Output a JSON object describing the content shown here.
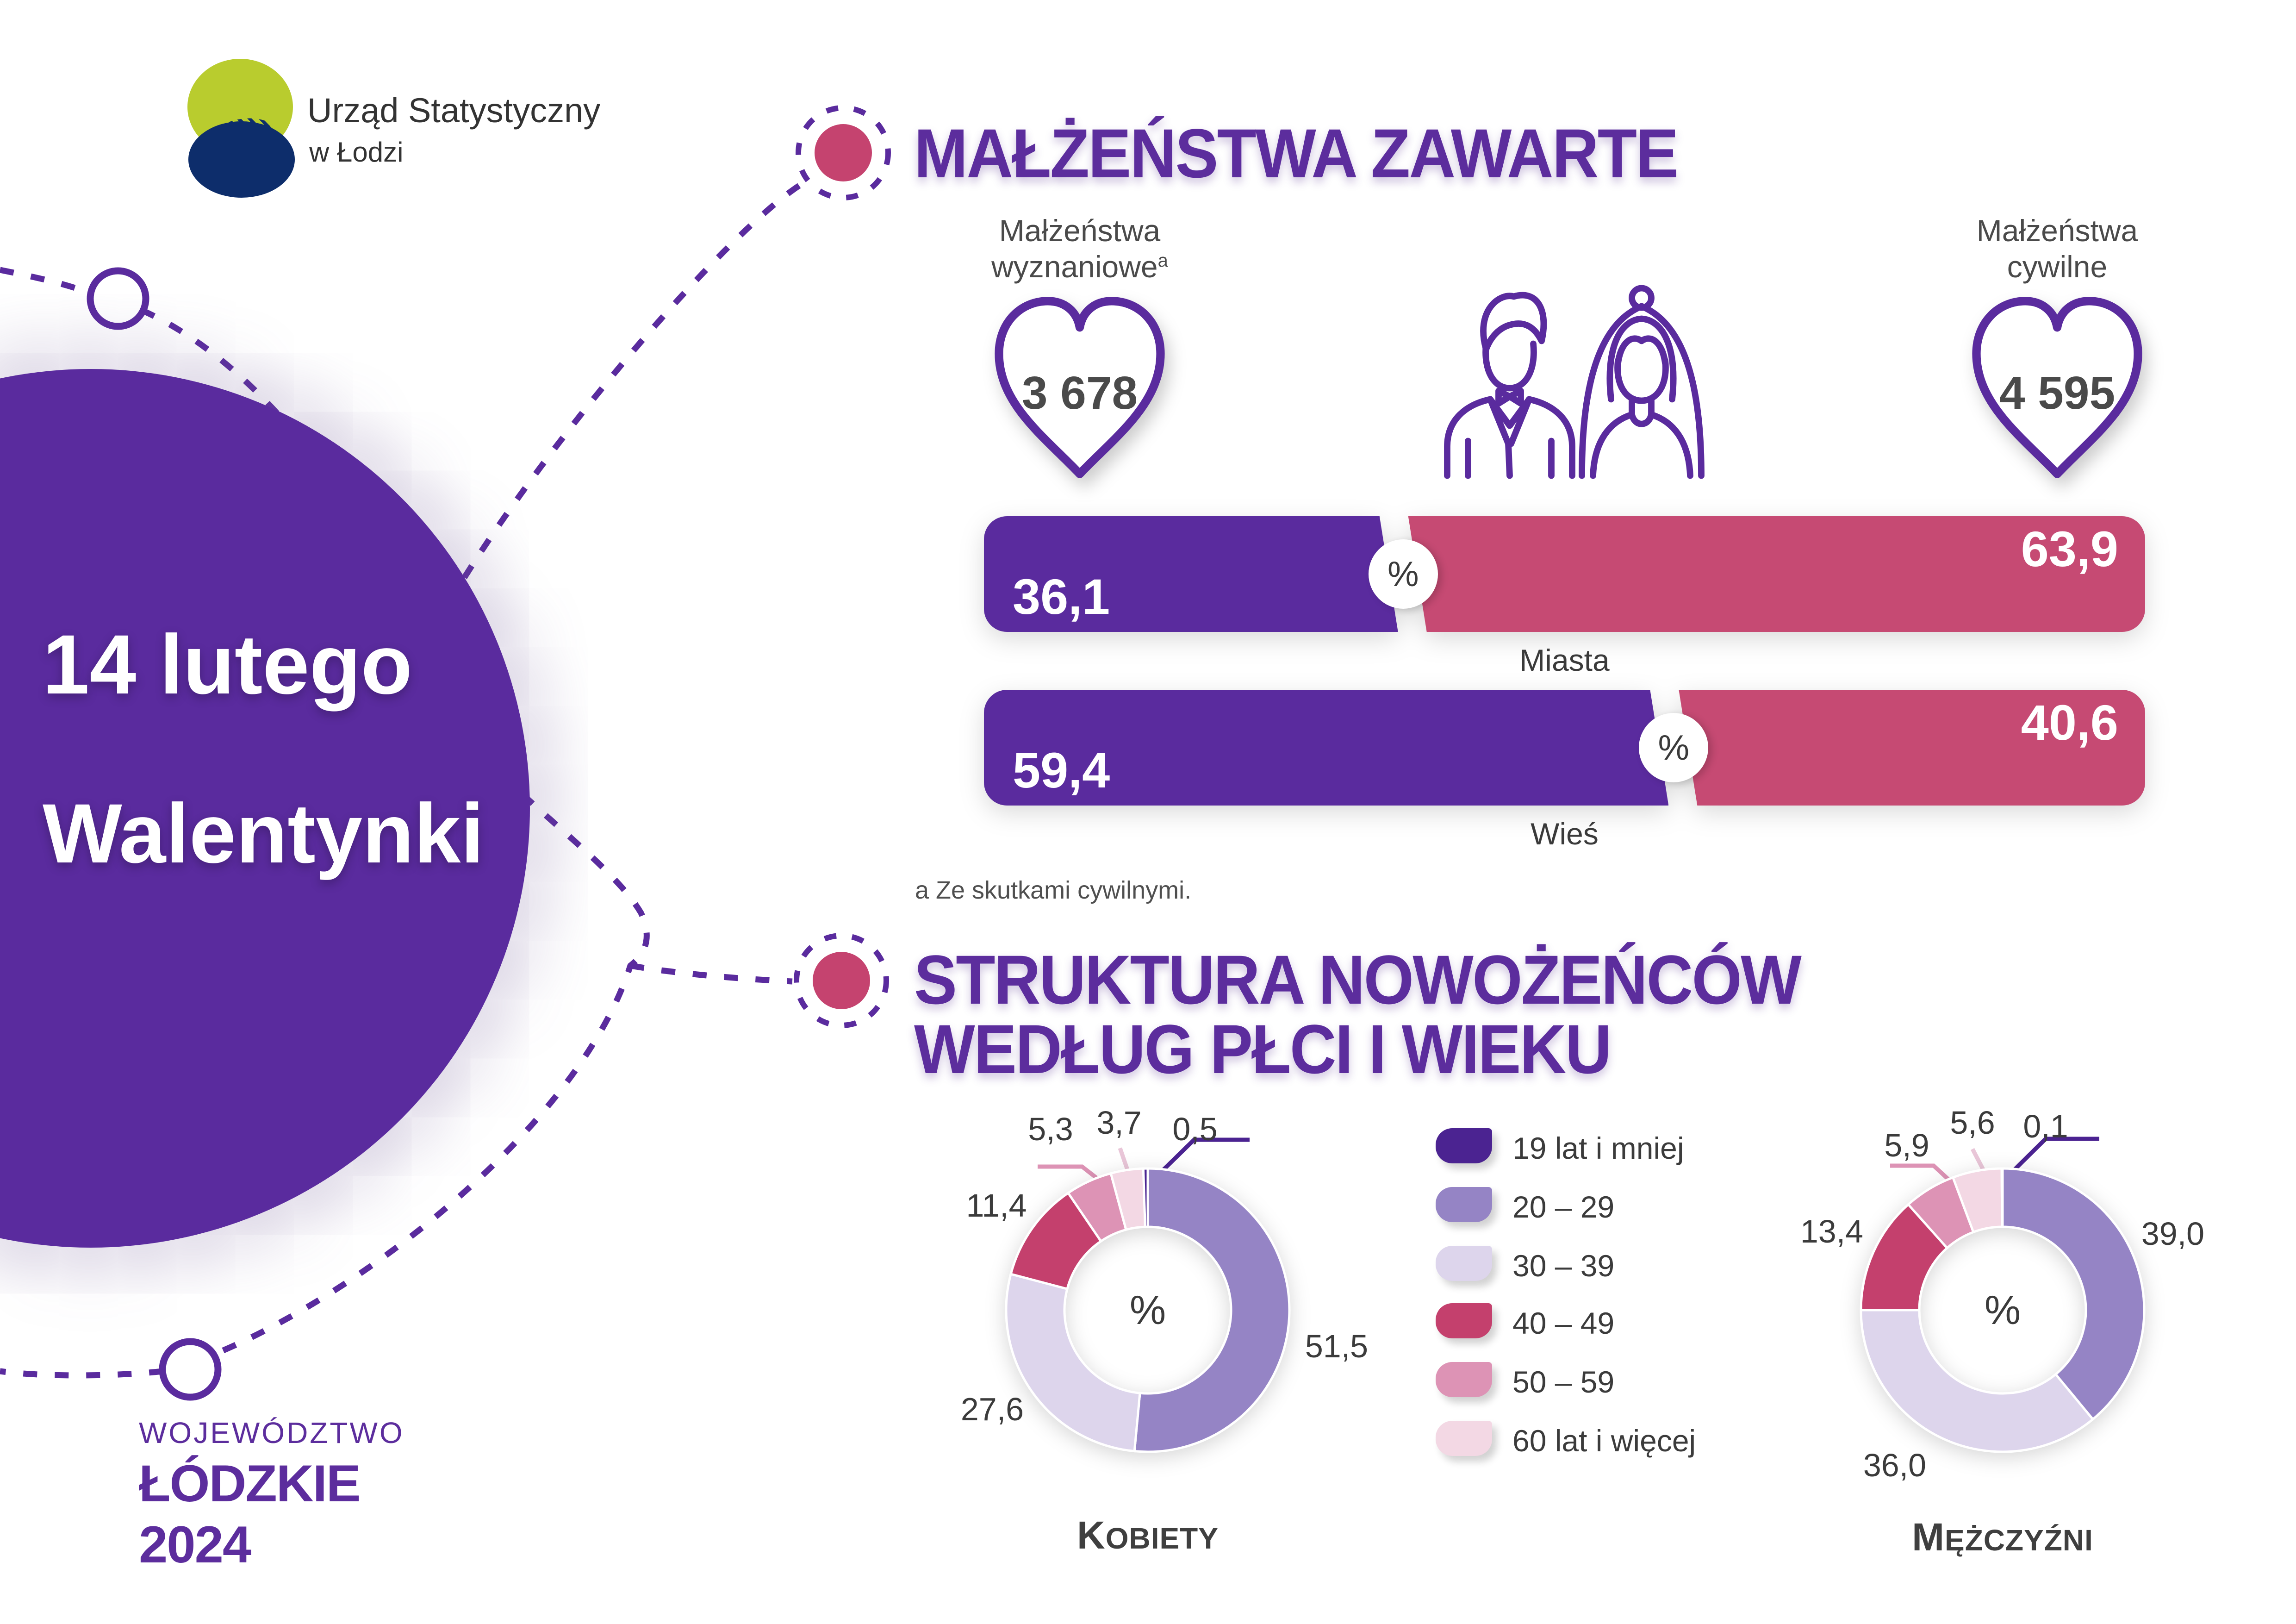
{
  "brand": {
    "name_line1": "Urząd Statystyczny",
    "name_line2": "w Łodzi"
  },
  "side_panel": {
    "date": "14 lutego",
    "event": "Walentynki",
    "region_label": "WOJEWÓDZTWO",
    "region_name": "ŁÓDZKIE",
    "year": "2024"
  },
  "marriages": {
    "title": "MAŁŻEŃSTWA ZAWARTE",
    "religious_label_line1": "Małżeństwa",
    "religious_label_line2": "wyznaniowe",
    "religious_footnote_marker": "a",
    "religious_value": "3 678",
    "civil_label_line1": "Małżeństwa",
    "civil_label_line2": "cywilne",
    "civil_value": "4 595",
    "percent_symbol": "%",
    "bar1": {
      "left": "36,1",
      "right": "63,9",
      "caption": "Miasta"
    },
    "bar2": {
      "left": "59,4",
      "right": "40,6",
      "caption": "Wieś"
    },
    "footnote": "a Ze skutkami cywilnymi."
  },
  "structure": {
    "title_line1": "STRUKTURA NOWOŻEŃCÓW",
    "title_line2": "WEDŁUG PŁCI I WIEKU",
    "percent_symbol": "%",
    "legend": [
      "19 lat i mniej",
      "20 – 29",
      "30 – 39",
      "40 – 49",
      "50 – 59",
      "60 lat i więcej"
    ],
    "women": {
      "caption": "KOBIETY",
      "a19": "0,5",
      "a20": "51,5",
      "a30": "27,6",
      "a40": "11,4",
      "a50": "5,3",
      "a60": "3,7"
    },
    "men": {
      "caption": "MĘŻCZYŹNI",
      "a19": "0,1",
      "a20": "39,0",
      "a30": "36,0",
      "a40": "13,4",
      "a50": "5,9",
      "a60": "5,6"
    }
  },
  "chart_data": [
    {
      "type": "bar",
      "title": "Małżeństwa zawarte — podział procentowy (fiolet / róż)",
      "unit": "%",
      "categories": [
        "Miasta",
        "Wieś"
      ],
      "series": [
        {
          "name": "segment fioletowy",
          "values": [
            36.1,
            59.4
          ]
        },
        {
          "name": "segment różowy",
          "values": [
            63.9,
            40.6
          ]
        }
      ],
      "annotations": {
        "religious_total": 3678,
        "civil_total": 4595
      }
    },
    {
      "type": "pie",
      "title": "Kobiety",
      "unit": "%",
      "categories": [
        "19 lat i mniej",
        "20 – 29",
        "30 – 39",
        "40 – 49",
        "50 – 59",
        "60 lat i więcej"
      ],
      "values": [
        0.5,
        51.5,
        27.6,
        11.4,
        5.3,
        3.7
      ],
      "legend_position": "center-between-charts",
      "donut": true
    },
    {
      "type": "pie",
      "title": "Mężczyźni",
      "unit": "%",
      "categories": [
        "19 lat i mniej",
        "20 – 29",
        "30 – 39",
        "40 – 49",
        "50 – 59",
        "60 lat i więcej"
      ],
      "values": [
        0.1,
        39.0,
        36.0,
        13.4,
        5.9,
        5.6
      ],
      "legend_position": "center-between-charts",
      "donut": true
    }
  ],
  "colors": {
    "accent_purple": "#5c2d9d",
    "bar_purple": "#5a2b9e",
    "bar_pink": "#c64a73",
    "dot_pink": "#c5436f",
    "age19": "#4b2391",
    "age20": "#9584c5",
    "age30": "#ddd5ec",
    "age40": "#c4406d",
    "age50": "#dd93b5",
    "age60": "#f3d8e4",
    "logo_green": "#b9cc2e",
    "logo_navy": "#0d2d6b"
  }
}
